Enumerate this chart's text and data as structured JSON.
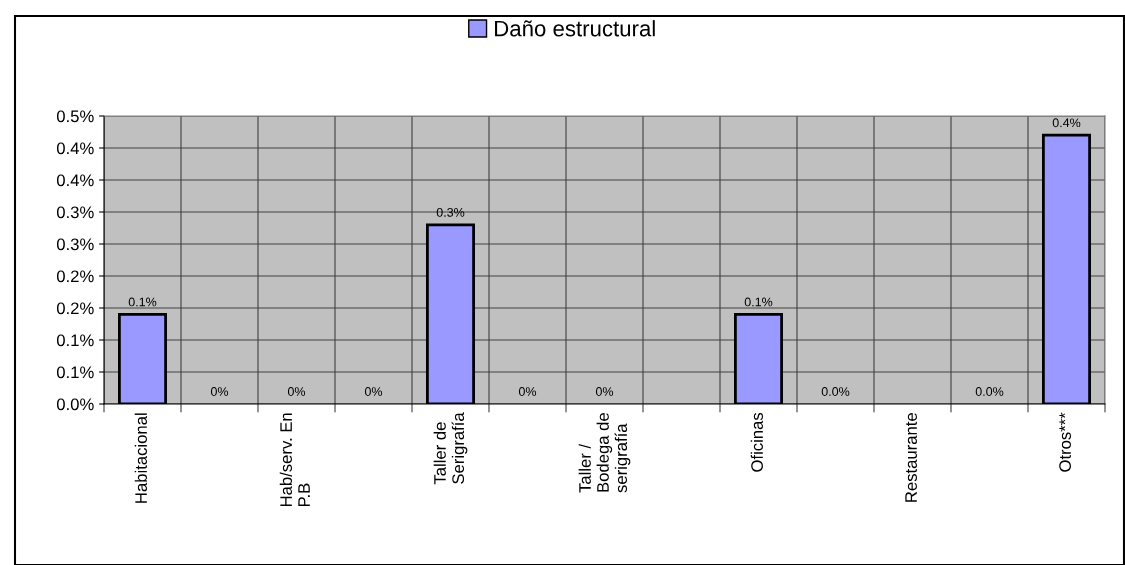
{
  "chart_data": {
    "type": "bar",
    "categories": [
      "Habitacional",
      null,
      "Hab/serv. En\nP.B",
      null,
      "Taller de\nSerigrafía",
      null,
      "Taller /\nBodega de\nserigrafía",
      null,
      "Oficinas",
      null,
      "Restaurante",
      null,
      "Otros***"
    ],
    "series": [
      {
        "name": "Daño estructural",
        "color": "#9999ff",
        "values": [
          0.14,
          0,
          0,
          0,
          0.28,
          0,
          0,
          null,
          0.14,
          0,
          null,
          0,
          0.42
        ],
        "value_labels": [
          "0.1%",
          "0%",
          "0%",
          "0%",
          "0.3%",
          "0%",
          "0%",
          null,
          "0.1%",
          "0.0%",
          null,
          "0.0%",
          "0.4%"
        ]
      }
    ],
    "ylim": [
      0,
      0.45
    ],
    "yticks": [
      {
        "value": 0,
        "label": "0.0%"
      },
      {
        "value": 0.05,
        "label": "0.1%"
      },
      {
        "value": 0.1,
        "label": "0.1%"
      },
      {
        "value": 0.15,
        "label": "0.2%"
      },
      {
        "value": 0.2,
        "label": "0.2%"
      },
      {
        "value": 0.25,
        "label": "0.3%"
      },
      {
        "value": 0.3,
        "label": "0.3%"
      },
      {
        "value": 0.35,
        "label": "0.4%"
      },
      {
        "value": 0.4,
        "label": "0.4%"
      },
      {
        "value": 0.45,
        "label": "0.5%"
      }
    ],
    "grid": true,
    "legend": "top"
  }
}
